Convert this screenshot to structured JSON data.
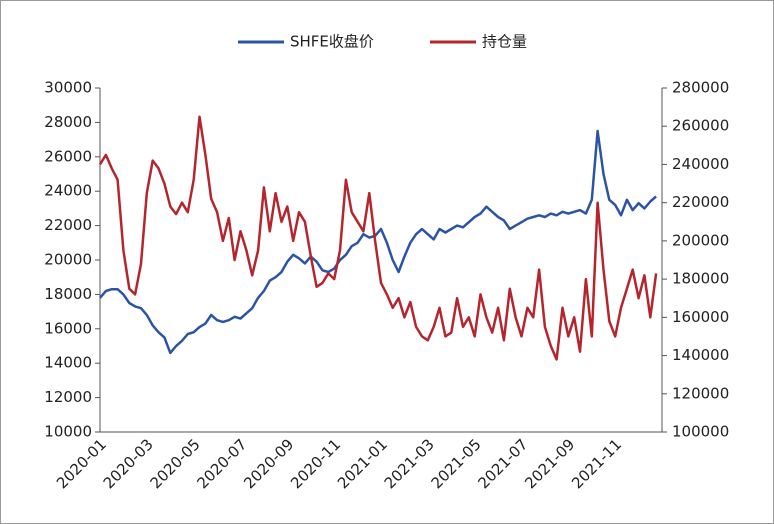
{
  "chart_data": {
    "type": "line",
    "categories": [
      "2020-01",
      null,
      null,
      null,
      null,
      null,
      null,
      null,
      "2020-03",
      null,
      null,
      null,
      null,
      null,
      null,
      null,
      "2020-05",
      null,
      null,
      null,
      null,
      null,
      null,
      null,
      "2020-07",
      null,
      null,
      null,
      null,
      null,
      null,
      null,
      "2020-09",
      null,
      null,
      null,
      null,
      null,
      null,
      null,
      "2020-11",
      null,
      null,
      null,
      null,
      null,
      null,
      null,
      "2021-01",
      null,
      null,
      null,
      null,
      null,
      null,
      null,
      "2021-03",
      null,
      null,
      null,
      null,
      null,
      null,
      null,
      "2021-05",
      null,
      null,
      null,
      null,
      null,
      null,
      null,
      "2021-07",
      null,
      null,
      null,
      null,
      null,
      null,
      null,
      "2021-09",
      null,
      null,
      null,
      null,
      null,
      null,
      null,
      "2021-11",
      null,
      null,
      null,
      null,
      null,
      null,
      null
    ],
    "series": [
      {
        "name": "SHFE收盘价",
        "color": "#2c54a5",
        "axis": "y",
        "values": [
          17800,
          18200,
          18300,
          18300,
          18000,
          17500,
          17300,
          17200,
          16800,
          16200,
          15800,
          15500,
          14600,
          15000,
          15300,
          15700,
          15800,
          16100,
          16300,
          16800,
          16500,
          16400,
          16500,
          16700,
          16600,
          16900,
          17200,
          17800,
          18200,
          18800,
          19000,
          19300,
          19900,
          20300,
          20100,
          19800,
          20200,
          19900,
          19400,
          19300,
          19500,
          20000,
          20300,
          20800,
          21000,
          21500,
          21300,
          21400,
          21800,
          21000,
          20000,
          19300,
          20200,
          21000,
          21500,
          21800,
          21500,
          21200,
          21800,
          21600,
          21800,
          22000,
          21900,
          22200,
          22500,
          22700,
          23100,
          22800,
          22500,
          22300,
          21800,
          22000,
          22200,
          22400,
          22500,
          22600,
          22500,
          22700,
          22600,
          22800,
          22700,
          22800,
          22900,
          22700,
          23500,
          27500,
          25000,
          23500,
          23200,
          22600,
          23500,
          22900,
          23300,
          23000,
          23400,
          23700
        ]
      },
      {
        "name": "持仓量",
        "color": "#b5252e",
        "axis": "y2",
        "values": [
          240000,
          245000,
          238000,
          232000,
          195000,
          175000,
          172000,
          188000,
          225000,
          242000,
          238000,
          230000,
          218000,
          214000,
          220000,
          215000,
          232000,
          265000,
          245000,
          222000,
          215000,
          200000,
          212000,
          190000,
          205000,
          195000,
          182000,
          195000,
          228000,
          205000,
          225000,
          210000,
          218000,
          200000,
          215000,
          210000,
          192000,
          176000,
          178000,
          183000,
          180000,
          195000,
          232000,
          215000,
          210000,
          205000,
          225000,
          200000,
          178000,
          172000,
          165000,
          170000,
          160000,
          168000,
          155000,
          150000,
          148000,
          155000,
          165000,
          150000,
          152000,
          170000,
          155000,
          160000,
          150000,
          172000,
          160000,
          152000,
          165000,
          148000,
          175000,
          160000,
          150000,
          165000,
          160000,
          185000,
          155000,
          145000,
          138000,
          165000,
          150000,
          160000,
          142000,
          180000,
          150000,
          220000,
          185000,
          158000,
          150000,
          165000,
          175000,
          185000,
          170000,
          182000,
          160000,
          183000
        ]
      }
    ],
    "ylim": [
      10000,
      30000
    ],
    "yticks": [
      10000,
      12000,
      14000,
      16000,
      18000,
      20000,
      22000,
      24000,
      26000,
      28000,
      30000
    ],
    "y2lim": [
      100000,
      280000
    ],
    "y2ticks": [
      100000,
      120000,
      140000,
      160000,
      180000,
      200000,
      220000,
      240000,
      260000,
      280000
    ],
    "grid": false,
    "legend": "top"
  }
}
